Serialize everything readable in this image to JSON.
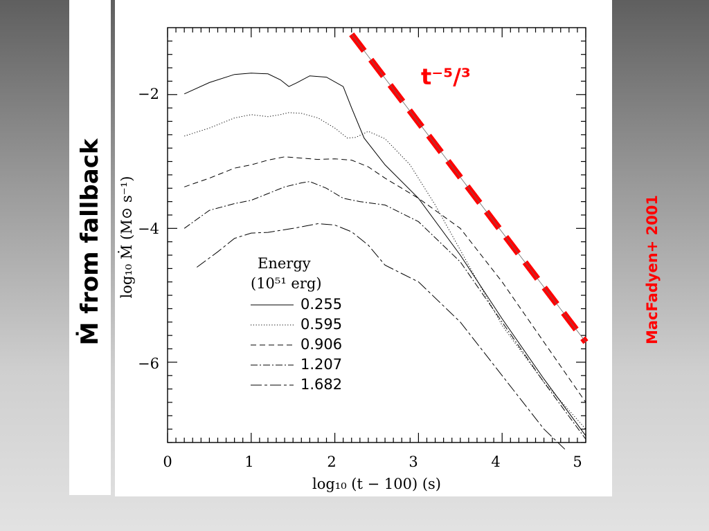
{
  "slide": {
    "side_label": "Ṁ  from fallback",
    "citation": "MacFadyen+ 2001",
    "colors": {
      "accent": "#ff0000",
      "background_top": "#5f5f5f",
      "background_bottom": "#e2e2e2"
    }
  },
  "chart_data": {
    "type": "line",
    "xlabel": "log₁₀ (t − 100) (s)",
    "ylabel": "log₁₀ Ṁ (M⊙ s⁻¹)",
    "xlim": [
      0,
      5
    ],
    "ylim": [
      -7.2,
      -1
    ],
    "x_ticks": [
      "0",
      "1",
      "2",
      "3",
      "4",
      "5"
    ],
    "y_ticks": [
      "−2",
      "−4",
      "−6"
    ],
    "grid": false,
    "legend": {
      "title_line1": "Energy",
      "title_line2": "(10⁵¹ erg)",
      "position": "center-left"
    },
    "series": [
      {
        "name": "0.255",
        "style": "solid",
        "points": [
          [
            0.2,
            -1.99
          ],
          [
            0.5,
            -1.82
          ],
          [
            0.8,
            -1.7
          ],
          [
            1.0,
            -1.68
          ],
          [
            1.2,
            -1.69
          ],
          [
            1.35,
            -1.78
          ],
          [
            1.45,
            -1.88
          ],
          [
            1.55,
            -1.82
          ],
          [
            1.7,
            -1.72
          ],
          [
            1.9,
            -1.74
          ],
          [
            2.1,
            -1.88
          ],
          [
            2.2,
            -2.2
          ],
          [
            2.35,
            -2.65
          ],
          [
            2.6,
            -3.05
          ],
          [
            3.0,
            -3.55
          ],
          [
            3.5,
            -4.4
          ],
          [
            4.0,
            -5.35
          ],
          [
            4.5,
            -6.25
          ],
          [
            5.0,
            -7.1
          ]
        ]
      },
      {
        "name": "0.595",
        "style": "dotted",
        "points": [
          [
            0.2,
            -2.62
          ],
          [
            0.5,
            -2.5
          ],
          [
            0.8,
            -2.35
          ],
          [
            1.0,
            -2.3
          ],
          [
            1.2,
            -2.33
          ],
          [
            1.35,
            -2.3
          ],
          [
            1.45,
            -2.27
          ],
          [
            1.6,
            -2.28
          ],
          [
            1.8,
            -2.35
          ],
          [
            2.0,
            -2.5
          ],
          [
            2.15,
            -2.65
          ],
          [
            2.25,
            -2.64
          ],
          [
            2.4,
            -2.55
          ],
          [
            2.6,
            -2.66
          ],
          [
            2.9,
            -3.05
          ],
          [
            3.2,
            -3.65
          ],
          [
            3.6,
            -4.55
          ],
          [
            4.0,
            -5.45
          ],
          [
            4.5,
            -6.3
          ],
          [
            5.0,
            -7.0
          ]
        ]
      },
      {
        "name": "0.906",
        "style": "dashed",
        "points": [
          [
            0.2,
            -3.38
          ],
          [
            0.5,
            -3.25
          ],
          [
            0.8,
            -3.1
          ],
          [
            1.0,
            -3.05
          ],
          [
            1.2,
            -2.98
          ],
          [
            1.4,
            -2.93
          ],
          [
            1.6,
            -2.95
          ],
          [
            1.8,
            -2.97
          ],
          [
            2.0,
            -2.96
          ],
          [
            2.2,
            -2.98
          ],
          [
            2.4,
            -3.08
          ],
          [
            2.6,
            -3.25
          ],
          [
            3.0,
            -3.55
          ],
          [
            3.5,
            -4.0
          ],
          [
            4.0,
            -4.8
          ],
          [
            4.5,
            -5.7
          ],
          [
            5.0,
            -6.6
          ]
        ]
      },
      {
        "name": "1.207",
        "style": "dashdot",
        "points": [
          [
            0.2,
            -4.0
          ],
          [
            0.5,
            -3.73
          ],
          [
            0.8,
            -3.63
          ],
          [
            1.0,
            -3.58
          ],
          [
            1.2,
            -3.48
          ],
          [
            1.4,
            -3.38
          ],
          [
            1.6,
            -3.32
          ],
          [
            1.7,
            -3.3
          ],
          [
            1.9,
            -3.4
          ],
          [
            2.1,
            -3.55
          ],
          [
            2.3,
            -3.6
          ],
          [
            2.6,
            -3.65
          ],
          [
            3.0,
            -3.9
          ],
          [
            3.5,
            -4.5
          ],
          [
            4.0,
            -5.4
          ],
          [
            4.5,
            -6.3
          ],
          [
            5.0,
            -7.15
          ]
        ]
      },
      {
        "name": "1.682",
        "style": "longdash",
        "points": [
          [
            0.35,
            -4.58
          ],
          [
            0.6,
            -4.35
          ],
          [
            0.8,
            -4.15
          ],
          [
            1.0,
            -4.07
          ],
          [
            1.2,
            -4.06
          ],
          [
            1.5,
            -4.0
          ],
          [
            1.8,
            -3.93
          ],
          [
            2.0,
            -3.95
          ],
          [
            2.2,
            -4.05
          ],
          [
            2.4,
            -4.25
          ],
          [
            2.6,
            -4.55
          ],
          [
            3.0,
            -4.8
          ],
          [
            3.5,
            -5.4
          ],
          [
            4.0,
            -6.2
          ],
          [
            4.5,
            -7.0
          ],
          [
            4.75,
            -7.3
          ]
        ]
      },
      {
        "name": "t⁻⁵/³",
        "style": "annotation",
        "points": [
          [
            2.2,
            -1.1
          ],
          [
            5.0,
            -5.7
          ]
        ]
      }
    ]
  }
}
